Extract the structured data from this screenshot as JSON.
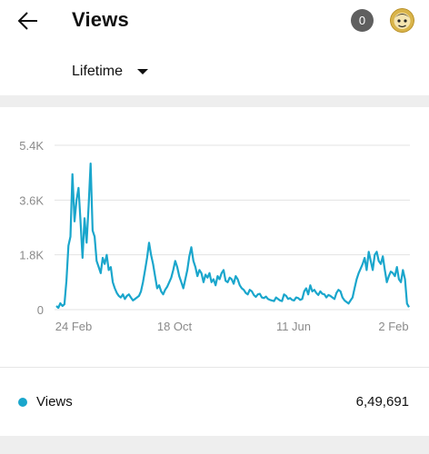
{
  "header": {
    "title": "Views",
    "notification_count": "0"
  },
  "filter": {
    "selected": "Lifetime"
  },
  "colors": {
    "accent": "#1aa6cc",
    "grid": "#e3e3e3",
    "axis_text": "#8a8a8a",
    "badge": "#5f5f5f"
  },
  "icons": {
    "back": "arrow-left-icon",
    "dropdown": "caret-down-icon"
  },
  "chart_data": {
    "type": "line",
    "title": "",
    "xlabel": "",
    "ylabel": "",
    "x_tick_labels": [
      "24 Feb",
      "18 Oct",
      "11 Jun",
      "2 Feb"
    ],
    "y_tick_labels": [
      "0",
      "1.8K",
      "3.6K",
      "5.4K"
    ],
    "ylim": [
      0,
      5400
    ],
    "grid": true,
    "legend_position": "bottom",
    "series": [
      {
        "name": "Views",
        "values": [
          120,
          60,
          210,
          120,
          180,
          950,
          2100,
          2400,
          4450,
          2900,
          3600,
          4000,
          2900,
          1700,
          3000,
          2200,
          3400,
          4800,
          2600,
          2400,
          1600,
          1400,
          1200,
          1700,
          1500,
          1800,
          1300,
          1400,
          900,
          700,
          550,
          450,
          400,
          500,
          350,
          450,
          500,
          400,
          300,
          350,
          400,
          450,
          600,
          900,
          1300,
          1700,
          2200,
          1800,
          1500,
          1100,
          700,
          800,
          600,
          500,
          650,
          750,
          900,
          1050,
          1300,
          1600,
          1400,
          1100,
          900,
          700,
          1000,
          1300,
          1750,
          2050,
          1600,
          1400,
          1100,
          1300,
          1200,
          900,
          1150,
          1050,
          1200,
          900,
          1000,
          800,
          1100,
          1000,
          1200,
          1300,
          950,
          900,
          1050,
          1000,
          850,
          1100,
          1000,
          800,
          700,
          650,
          550,
          500,
          650,
          600,
          480,
          420,
          500,
          520,
          400,
          380,
          430,
          350,
          320,
          300,
          280,
          400,
          350,
          300,
          280,
          500,
          450,
          350,
          380,
          320,
          300,
          400,
          380,
          320,
          350,
          600,
          700,
          500,
          800,
          600,
          650,
          550,
          480,
          600,
          520,
          500,
          400,
          480,
          450,
          400,
          350,
          550,
          650,
          600,
          400,
          300,
          250,
          200,
          300,
          400,
          700,
          1000,
          1200,
          1350,
          1500,
          1700,
          1300,
          1900,
          1600,
          1300,
          1800,
          1900,
          1600,
          1500,
          1750,
          1300,
          900,
          1100,
          1250,
          1200,
          1100,
          1400,
          1000,
          900,
          1300,
          1000,
          200,
          80
        ]
      }
    ],
    "total_label": "Views",
    "total_value": "6,49,691"
  }
}
